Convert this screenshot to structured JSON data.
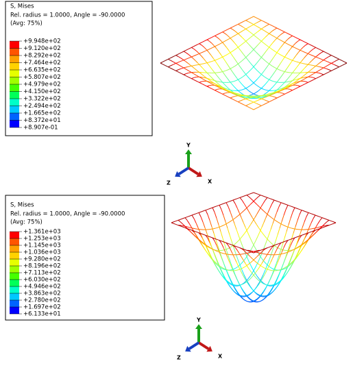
{
  "panels": [
    {
      "legend": {
        "title": "S, Mises",
        "subtitle": "Rel. radius = 1.0000, Angle = -90.0000",
        "avg": "(Avg: 75%)",
        "levels": [
          "+9.948e+02",
          "+9.120e+02",
          "+8.292e+02",
          "+7.464e+02",
          "+6.635e+02",
          "+5.807e+02",
          "+4.979e+02",
          "+4.150e+02",
          "+3.322e+02",
          "+2.494e+02",
          "+1.665e+02",
          "+8.372e+01",
          "+8.907e-01"
        ]
      },
      "triad": {
        "y": "Y",
        "z": "Z",
        "x": "X"
      }
    },
    {
      "legend": {
        "title": "S, Mises",
        "subtitle": "Rel. radius = 1.0000, Angle = -90.0000",
        "avg": "(Avg: 75%)",
        "levels": [
          "+1.361e+03",
          "+1.253e+03",
          "+1.145e+03",
          "+1.036e+03",
          "+9.280e+02",
          "+8.196e+02",
          "+7.113e+02",
          "+6.030e+02",
          "+4.946e+02",
          "+3.863e+02",
          "+2.780e+02",
          "+1.697e+02",
          "+6.133e+01"
        ]
      },
      "triad": {
        "y": "Y",
        "z": "Z",
        "x": "X"
      }
    }
  ]
}
